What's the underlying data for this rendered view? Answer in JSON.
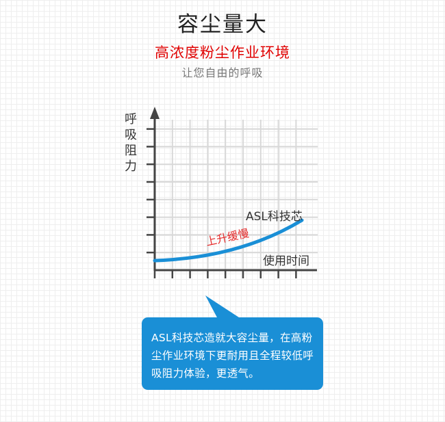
{
  "header": {
    "title": "容尘量大",
    "subtitle": "高浓度粉尘作业环境",
    "tagline": "让您自由的呼吸"
  },
  "diagram": {
    "y_axis_label": "呼吸阻力",
    "x_axis_label": "使用时间",
    "series_label": "ASL科技芯",
    "annotation": "上升缓慢",
    "curve_color": "#1a8fd6",
    "annotation_color": "#e52a2a"
  },
  "callout": {
    "text": "ASL科技芯造就大容尘量，在高粉尘作业环境下更耐用且全程较低呼吸阻力体验，更透气。",
    "color": "#1a8fd6"
  }
}
